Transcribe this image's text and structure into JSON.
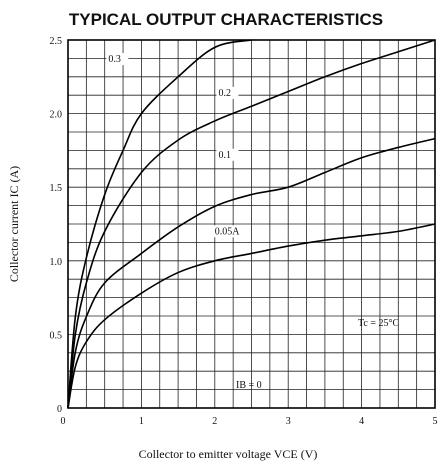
{
  "chart_data": {
    "type": "line",
    "title": "TYPICAL OUTPUT CHARACTERISTICS",
    "xlabel": "Collector to emitter voltage  VCE (V)",
    "ylabel": "Collector current  IC (A)",
    "xlim": [
      0,
      5
    ],
    "ylim": [
      0,
      2.5
    ],
    "x_ticks": [
      "0",
      "1",
      "2",
      "3",
      "4",
      "5"
    ],
    "y_ticks": [
      "0",
      "0.5",
      "1.0",
      "1.5",
      "2.0",
      "2.5"
    ],
    "x_tick_values": [
      0,
      1,
      2,
      3,
      4,
      5
    ],
    "y_tick_values": [
      0,
      0.5,
      1.0,
      1.5,
      2.0,
      2.5
    ],
    "grid": true,
    "annotations": [
      "Tc = 25°C",
      "IB = 0"
    ],
    "series": [
      {
        "name": "0.3",
        "x": [
          0,
          0.1,
          0.25,
          0.5,
          0.75,
          1.0,
          1.5,
          2.0,
          2.5
        ],
        "y": [
          0,
          0.62,
          1.02,
          1.45,
          1.75,
          2.0,
          2.25,
          2.45,
          2.5
        ]
      },
      {
        "name": "0.2",
        "x": [
          0,
          0.1,
          0.25,
          0.5,
          1.0,
          1.5,
          2.0,
          2.5,
          3.0,
          3.5,
          4.0,
          4.5,
          5.0
        ],
        "y": [
          0,
          0.5,
          0.85,
          1.2,
          1.6,
          1.82,
          1.95,
          2.05,
          2.15,
          2.25,
          2.34,
          2.42,
          2.5
        ]
      },
      {
        "name": "0.1",
        "x": [
          0,
          0.1,
          0.25,
          0.5,
          1.0,
          1.5,
          2.0,
          2.5,
          3.0,
          3.5,
          4.0,
          4.5,
          5.0
        ],
        "y": [
          0,
          0.38,
          0.62,
          0.85,
          1.05,
          1.23,
          1.37,
          1.45,
          1.5,
          1.6,
          1.7,
          1.77,
          1.83
        ]
      },
      {
        "name": "0.05A",
        "x": [
          0,
          0.1,
          0.25,
          0.5,
          1.0,
          1.5,
          2.0,
          2.5,
          3.0,
          3.5,
          4.0,
          4.5,
          5.0
        ],
        "y": [
          0,
          0.28,
          0.45,
          0.6,
          0.78,
          0.92,
          1.0,
          1.05,
          1.1,
          1.14,
          1.17,
          1.2,
          1.25
        ]
      }
    ],
    "curve_labels": [
      {
        "text": "0.3",
        "x": 0.55,
        "y": 2.35
      },
      {
        "text": "0.2",
        "x": 2.05,
        "y": 2.12
      },
      {
        "text": "0.1",
        "x": 2.05,
        "y": 1.7
      },
      {
        "text": "0.05A",
        "x": 2.0,
        "y": 1.18
      }
    ]
  }
}
